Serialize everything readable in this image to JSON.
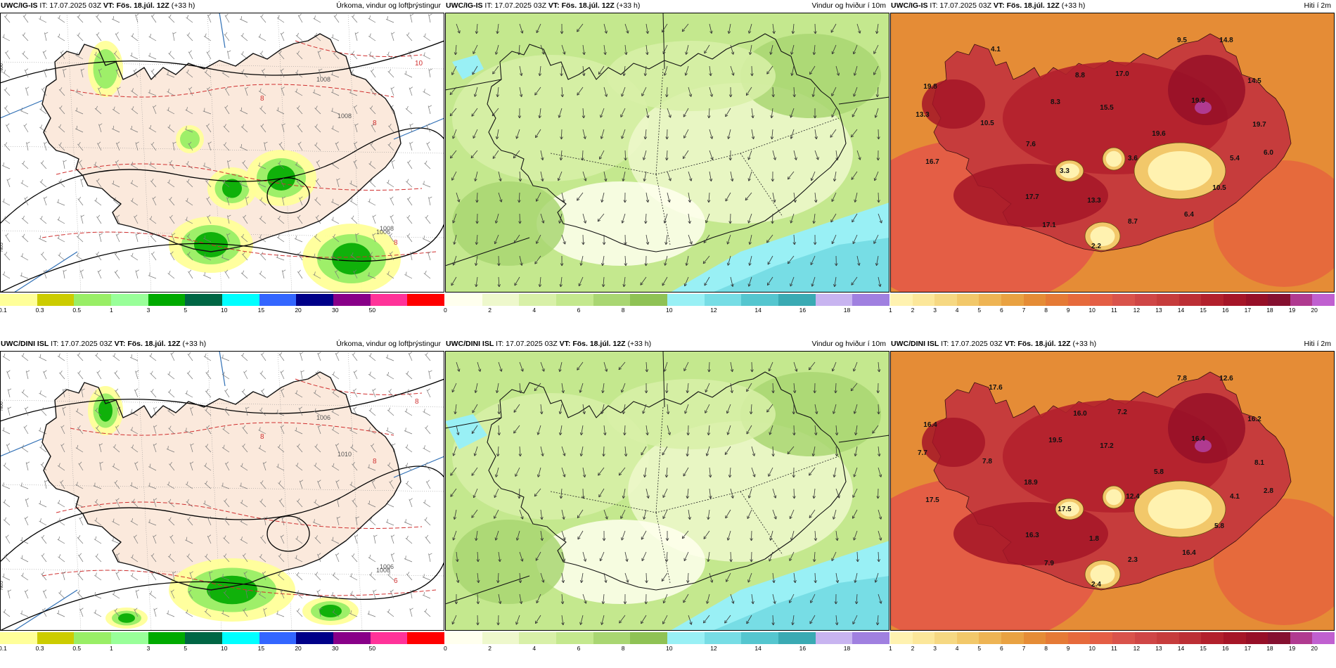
{
  "panels": [
    {
      "model": "UWC/IG-IS",
      "it": "IT: 17.07.2025 03Z",
      "vt": "VT: Fös. 18.júl. 12Z",
      "lead": "(+33 h)",
      "title": "Úrkoma, vindur og loftþrýstingur",
      "type": "precip",
      "isobars": [
        "1008",
        "1006",
        "1008",
        "1008"
      ],
      "contours": [
        "8",
        "8",
        "8",
        "10"
      ],
      "lat": [
        "N66",
        "N65"
      ]
    },
    {
      "model": "UWC/IG-IS",
      "it": "IT: 17.07.2025 03Z",
      "vt": "VT: Fös. 18.júl. 12Z",
      "lead": "(+33 h)",
      "title": "Vindur og hviður í 10m",
      "type": "wind"
    },
    {
      "model": "UWC/IG-IS",
      "it": "IT: 17.07.2025 03Z",
      "vt": "VT: Fös. 18.júl. 12Z",
      "lead": "(+33 h)",
      "title": "Hiti í 2m",
      "type": "temp",
      "labels": [
        "9.5",
        "14.8",
        "4.1",
        "8.8",
        "17.0",
        "19.8",
        "14.5",
        "8.3",
        "15.5",
        "19.6",
        "13.3",
        "10.5",
        "19.7",
        "7.6",
        "16.7",
        "3.3",
        "3.6",
        "5.4",
        "6.0",
        "19.6",
        "10.5",
        "17.7",
        "13.3",
        "6.4",
        "8.7",
        "17.1",
        "2.2"
      ]
    },
    {
      "model": "UWC/DINI ISL",
      "it": "IT: 17.07.2025 03Z",
      "vt": "VT: Fös. 18.júl. 12Z",
      "lead": "(+33 h)",
      "title": "Úrkoma, vindur og loftþrýstingur",
      "type": "precip",
      "isobars": [
        "1010",
        "1008",
        "1006",
        "1006"
      ],
      "contours": [
        "8",
        "8",
        "6",
        "8"
      ],
      "lat": [
        "N66",
        "N65"
      ]
    },
    {
      "model": "UWC/DINI ISL",
      "it": "IT: 17.07.2025 03Z",
      "vt": "VT: Fös. 18.júl. 12Z",
      "lead": "(+33 h)",
      "title": "Vindur og hviður í 10m",
      "type": "wind"
    },
    {
      "model": "UWC/DINI ISL",
      "it": "IT: 17.07.2025 03Z",
      "vt": "VT: Fös. 18.júl. 12Z",
      "lead": "(+33 h)",
      "title": "Hiti í 2m",
      "type": "temp",
      "labels": [
        "7.8",
        "12.6",
        "17.6",
        "16.0",
        "7.2",
        "16.4",
        "16.2",
        "19.5",
        "17.2",
        "16.4",
        "7.7",
        "7.8",
        "8.1",
        "18.9",
        "17.5",
        "17.5",
        "12.4",
        "4.1",
        "2.8",
        "5.8",
        "5.8",
        "16.3",
        "1.8",
        "16.4",
        "2.3",
        "7.9",
        "2.4"
      ]
    }
  ],
  "legends": {
    "precip": {
      "ticks": [
        "0.1",
        "0.3",
        "0.5",
        "1",
        "3",
        "5",
        "10",
        "15",
        "20",
        "30",
        "50"
      ],
      "colors": [
        "#ffff99",
        "#cccc00",
        "#99ee66",
        "#99ff99",
        "#00aa00",
        "#006644",
        "#00ffff",
        "#3366ff",
        "#000088",
        "#880088",
        "#ff3399",
        "#ff0000"
      ]
    },
    "wind": {
      "ticks": [
        "0",
        "2",
        "4",
        "6",
        "8",
        "10",
        "12",
        "14",
        "16",
        "18"
      ],
      "colors": [
        "#ffffee",
        "#eef8cc",
        "#d8f0a8",
        "#c4e88e",
        "#a9d672",
        "#8fc255",
        "#99f0f5",
        "#77dde5",
        "#55c6cf",
        "#3aaab3",
        "#c8b4f0",
        "#a080e0"
      ]
    },
    "temp": {
      "ticks": [
        "1",
        "2",
        "3",
        "4",
        "5",
        "6",
        "7",
        "8",
        "9",
        "10",
        "11",
        "12",
        "13",
        "14",
        "15",
        "16",
        "17",
        "18",
        "19",
        "20"
      ],
      "colors": [
        "#fff2b0",
        "#fce79a",
        "#f6d882",
        "#f2c86a",
        "#eeb454",
        "#e9a242",
        "#e58c36",
        "#e57a36",
        "#e66a3c",
        "#e45e45",
        "#d9534b",
        "#cf4646",
        "#c63c3c",
        "#bc2f35",
        "#b2202c",
        "#a51527",
        "#960f27",
        "#851030",
        "#b03a90",
        "#c060d0"
      ]
    }
  },
  "colors": {
    "land": "#fbe9dc",
    "sea": "#ffffff",
    "coast": "#111111",
    "isobar": "#000000",
    "red_contour": "#d03030",
    "blue_line": "#2f6fb5"
  }
}
